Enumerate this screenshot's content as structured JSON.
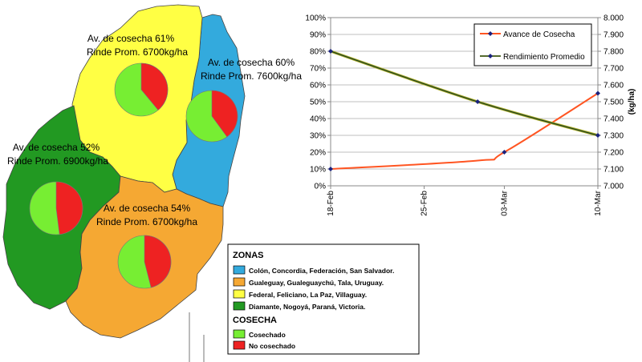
{
  "map": {
    "colors": {
      "blue": "#33aadd",
      "orange": "#f5a833",
      "yellow": "#ffff44",
      "green": "#229922",
      "cosechado": "#77ee33",
      "no_cosechado": "#ee2222"
    },
    "zones": [
      {
        "id": "noroeste",
        "color": "green",
        "line1": "Av. de cosecha 52%",
        "line2": "Rinde Prom. 6900kg/ha",
        "harvest": 52
      },
      {
        "id": "norte",
        "color": "yellow",
        "line1": "Av. de cosecha 61%",
        "line2": "Rinde Prom. 6700kg/ha",
        "harvest": 61
      },
      {
        "id": "este",
        "color": "blue",
        "line1": "Av. de cosecha 60%",
        "line2": "Rinde Prom. 7600kg/ha",
        "harvest": 60
      },
      {
        "id": "sur",
        "color": "orange",
        "line1": "Av. de cosecha 54%",
        "line2": "Rinde Prom. 6700kg/ha",
        "harvest": 54
      }
    ]
  },
  "legend": {
    "zonas_title": "ZONAS",
    "zonas": [
      {
        "color": "#33aadd",
        "text": "Colón, Concordia, Federación, San Salvador."
      },
      {
        "color": "#f5a833",
        "text": "Gualeguay, Gualeguaychú, Tala, Uruguay."
      },
      {
        "color": "#ffff44",
        "text": "Federal, Feliciano, La Paz, Villaguay."
      },
      {
        "color": "#229922",
        "text": "Diamante, Nogoyá, Paraná, Victoria."
      }
    ],
    "cosecha_title": "COSECHA",
    "cosecha": [
      {
        "color": "#77ee33",
        "text": "Cosechado"
      },
      {
        "color": "#ee2222",
        "text": "No cosechado"
      }
    ]
  },
  "chart_data": {
    "type": "line",
    "categories": [
      "18-Feb",
      "25-Feb",
      "03-Mar",
      "10-Mar"
    ],
    "grid": true,
    "legend_position": "top-right",
    "y_left": {
      "label": "",
      "ticks": [
        "0%",
        "10%",
        "20%",
        "30%",
        "40%",
        "50%",
        "60%",
        "70%",
        "80%",
        "90%",
        "100%"
      ],
      "range": [
        0,
        100
      ]
    },
    "y_right": {
      "label": "(kg/ha)",
      "ticks": [
        "7.000",
        "7.100",
        "7.200",
        "7.300",
        "7.400",
        "7.500",
        "7.600",
        "7.700",
        "7.800",
        "7.900",
        "8.000"
      ],
      "range": [
        7000,
        8000
      ]
    },
    "series": [
      {
        "name": "Avance de Cosecha",
        "axis": "left",
        "color": "#ff5522",
        "x": [
          "18-Feb",
          "01-Mar",
          "03-Mar",
          "10-Mar"
        ],
        "values": [
          10,
          15,
          20,
          55
        ]
      },
      {
        "name": "Rendimiento Promedio",
        "axis": "right",
        "color": "#223388",
        "x": [
          "18-Feb",
          "01-Mar",
          "10-Mar"
        ],
        "values": [
          7800,
          7500,
          7300
        ]
      }
    ]
  }
}
